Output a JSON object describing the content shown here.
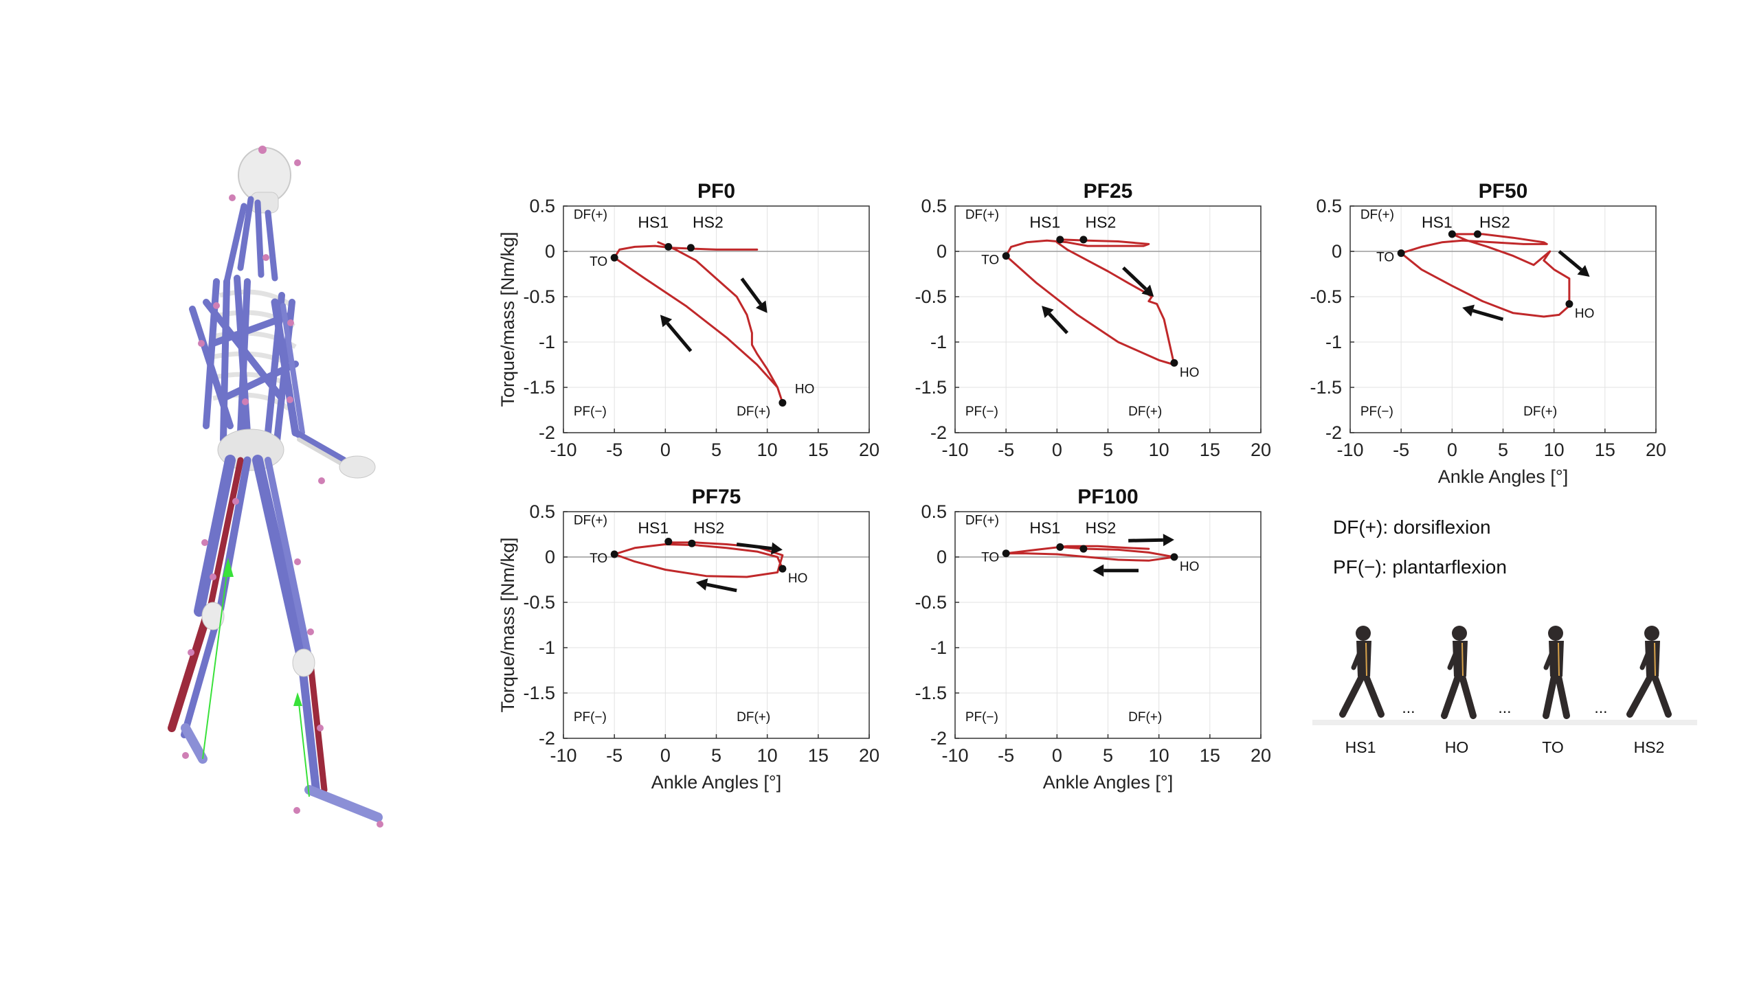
{
  "legend": {
    "df": "DF(+): dorsiflexion",
    "pf": "PF(−): plantarflexion"
  },
  "gait_phases": [
    "HS1",
    "HO",
    "TO",
    "HS2"
  ],
  "gait_ellipsis": "...",
  "colors": {
    "curve": "#c0282a",
    "grid": "#e2e2e2",
    "muscle": "#6f73c8",
    "muscle_active": "#9c2a3c",
    "bone": "#ededed",
    "grf": "#39e13a"
  },
  "chart_data": [
    {
      "type": "line",
      "title": "PF0",
      "xlabel": "",
      "ylabel": "Torque/mass [Nm/kg]",
      "xlim": [
        -10,
        20
      ],
      "ylim": [
        -2,
        0.5
      ],
      "xticks": [
        "-10",
        "-5",
        "0",
        "5",
        "10",
        "15",
        "20"
      ],
      "yticks": [
        "0.5",
        "0",
        "-0.5",
        "-1",
        "-1.5",
        "-2"
      ],
      "region_labels": {
        "df_top": "DF(+)",
        "pf_bottom": "PF(−)",
        "df_bottom": "DF(+)"
      },
      "series": [
        {
          "x": [
            9.0,
            7.0,
            5.0,
            2.5,
            0.5,
            -1.0,
            -3.0,
            -4.5,
            -5.0,
            -2.0,
            2.0,
            6.0,
            9.0,
            11.0,
            11.5,
            11.0,
            10.0,
            9.0,
            8.5,
            8.5,
            8.0,
            7.0,
            5.0,
            3.0,
            1.0,
            -0.7
          ],
          "y": [
            0.02,
            0.02,
            0.02,
            0.03,
            0.04,
            0.06,
            0.05,
            0.02,
            -0.07,
            -0.3,
            -0.6,
            -0.95,
            -1.25,
            -1.5,
            -1.67,
            -1.5,
            -1.3,
            -1.13,
            -1.03,
            -0.9,
            -0.7,
            -0.5,
            -0.3,
            -0.1,
            0.02,
            0.1
          ]
        }
      ],
      "events": [
        {
          "label": "TO",
          "x": -5.0,
          "y": -0.07
        },
        {
          "label": "HS1",
          "x": 0.3,
          "y": 0.05
        },
        {
          "label": "HS2",
          "x": 2.5,
          "y": 0.04
        },
        {
          "label": "HO",
          "x": 11.5,
          "y": -1.67
        }
      ]
    },
    {
      "type": "line",
      "title": "PF25",
      "xlabel": "",
      "ylabel": "",
      "xlim": [
        -10,
        20
      ],
      "ylim": [
        -2,
        0.5
      ],
      "xticks": [
        "-10",
        "-5",
        "0",
        "5",
        "10",
        "15",
        "20"
      ],
      "yticks": [
        "0.5",
        "0",
        "-0.5",
        "-1",
        "-1.5",
        "-2"
      ],
      "region_labels": {
        "df_top": "DF(+)",
        "pf_bottom": "PF(−)",
        "df_bottom": "DF(+)"
      },
      "series": [
        {
          "x": [
            0.3,
            3.0,
            6.0,
            9.0,
            8.5,
            6.0,
            3.0,
            1.0,
            -1.0,
            -3.0,
            -4.5,
            -5.0,
            -2.0,
            2.0,
            6.0,
            10.0,
            11.5,
            11.0,
            10.5,
            9.8,
            9.0,
            9.3,
            8.6,
            7.0,
            5.0,
            3.0,
            1.0,
            0.0
          ],
          "y": [
            0.13,
            0.12,
            0.11,
            0.08,
            0.06,
            0.06,
            0.06,
            0.1,
            0.12,
            0.1,
            0.05,
            -0.05,
            -0.35,
            -0.7,
            -1.0,
            -1.2,
            -1.25,
            -1.0,
            -0.75,
            -0.58,
            -0.55,
            -0.5,
            -0.45,
            -0.35,
            -0.22,
            -0.1,
            0.02,
            0.1
          ]
        }
      ],
      "events": [
        {
          "label": "TO",
          "x": -5.0,
          "y": -0.05
        },
        {
          "label": "HS1",
          "x": 0.3,
          "y": 0.13
        },
        {
          "label": "HS2",
          "x": 2.6,
          "y": 0.13
        },
        {
          "label": "HO",
          "x": 11.5,
          "y": -1.23
        }
      ]
    },
    {
      "type": "line",
      "title": "PF50",
      "xlabel": "Ankle Angles [°]",
      "ylabel": "",
      "xlim": [
        -10,
        20
      ],
      "ylim": [
        -2,
        0.5
      ],
      "xticks": [
        "-10",
        "-5",
        "0",
        "5",
        "10",
        "15",
        "20"
      ],
      "yticks": [
        "0.5",
        "0",
        "-0.5",
        "-1",
        "-1.5",
        "-2"
      ],
      "region_labels": {
        "df_top": "DF(+)",
        "pf_bottom": "PF(−)",
        "df_bottom": "DF(+)"
      },
      "series": [
        {
          "x": [
            0.0,
            3.0,
            6.0,
            9.0,
            9.3,
            7.0,
            4.0,
            1.0,
            -1.0,
            -3.0,
            -5.0,
            -3.0,
            0.0,
            3.0,
            6.0,
            9.0,
            10.5,
            11.5,
            11.5,
            10.0,
            9.0,
            9.6,
            8.0,
            6.0,
            3.5,
            1.5,
            0.0
          ],
          "y": [
            0.19,
            0.19,
            0.15,
            0.1,
            0.08,
            0.08,
            0.1,
            0.12,
            0.1,
            0.05,
            -0.02,
            -0.2,
            -0.38,
            -0.55,
            -0.68,
            -0.72,
            -0.7,
            -0.6,
            -0.3,
            -0.2,
            -0.1,
            0.0,
            -0.15,
            -0.05,
            0.05,
            0.12,
            0.19
          ]
        }
      ],
      "events": [
        {
          "label": "TO",
          "x": -5.0,
          "y": -0.02
        },
        {
          "label": "HS1",
          "x": 0.0,
          "y": 0.19
        },
        {
          "label": "HS2",
          "x": 2.5,
          "y": 0.19
        },
        {
          "label": "HO",
          "x": 11.5,
          "y": -0.58
        }
      ]
    },
    {
      "type": "line",
      "title": "PF75",
      "xlabel": "Ankle Angles [°]",
      "ylabel": "Torque/mass [Nm/kg]",
      "xlim": [
        -10,
        20
      ],
      "ylim": [
        -2,
        0.5
      ],
      "xticks": [
        "-10",
        "-5",
        "0",
        "5",
        "10",
        "15",
        "20"
      ],
      "yticks": [
        "0.5",
        "0",
        "-0.5",
        "-1",
        "-1.5",
        "-2"
      ],
      "region_labels": {
        "df_top": "DF(+)",
        "pf_bottom": "PF(−)",
        "df_bottom": "DF(+)"
      },
      "series": [
        {
          "x": [
            0.3,
            3.0,
            6.0,
            9.0,
            11.5,
            11.0,
            8.0,
            4.0,
            0.0,
            -3.0,
            -5.0,
            -3.0,
            0.0,
            3.0,
            6.0,
            9.0,
            11.0,
            11.5
          ],
          "y": [
            0.16,
            0.16,
            0.14,
            0.11,
            0.02,
            -0.17,
            -0.22,
            -0.21,
            -0.14,
            -0.05,
            0.03,
            0.1,
            0.14,
            0.13,
            0.1,
            0.06,
            0.0,
            -0.13
          ]
        }
      ],
      "events": [
        {
          "label": "TO",
          "x": -5.0,
          "y": 0.03
        },
        {
          "label": "HS1",
          "x": 0.3,
          "y": 0.17
        },
        {
          "label": "HS2",
          "x": 2.6,
          "y": 0.15
        },
        {
          "label": "HO",
          "x": 11.5,
          "y": -0.13
        }
      ]
    },
    {
      "type": "line",
      "title": "PF100",
      "xlabel": "Ankle Angles [°]",
      "ylabel": "",
      "xlim": [
        -10,
        20
      ],
      "ylim": [
        -2,
        0.5
      ],
      "xticks": [
        "-10",
        "-5",
        "0",
        "5",
        "10",
        "15",
        "20"
      ],
      "yticks": [
        "0.5",
        "0",
        "-0.5",
        "-1",
        "-1.5",
        "-2"
      ],
      "region_labels": {
        "df_top": "DF(+)",
        "pf_bottom": "PF(−)",
        "df_bottom": "DF(+)"
      },
      "series": [
        {
          "x": [
            0.3,
            3.0,
            6.0,
            9.0,
            11.5,
            9.0,
            6.0,
            3.0,
            0.0,
            -3.0,
            -5.0,
            -2.0,
            1.0,
            4.0,
            7.0,
            9.0
          ],
          "y": [
            0.11,
            0.09,
            0.08,
            0.05,
            0.0,
            -0.04,
            -0.03,
            0.0,
            0.03,
            0.04,
            0.04,
            0.08,
            0.12,
            0.12,
            0.1,
            0.09
          ]
        }
      ],
      "events": [
        {
          "label": "TO",
          "x": -5.0,
          "y": 0.04
        },
        {
          "label": "HS1",
          "x": 0.3,
          "y": 0.11
        },
        {
          "label": "HS2",
          "x": 2.6,
          "y": 0.09
        },
        {
          "label": "HO",
          "x": 11.5,
          "y": 0.0
        }
      ]
    }
  ]
}
